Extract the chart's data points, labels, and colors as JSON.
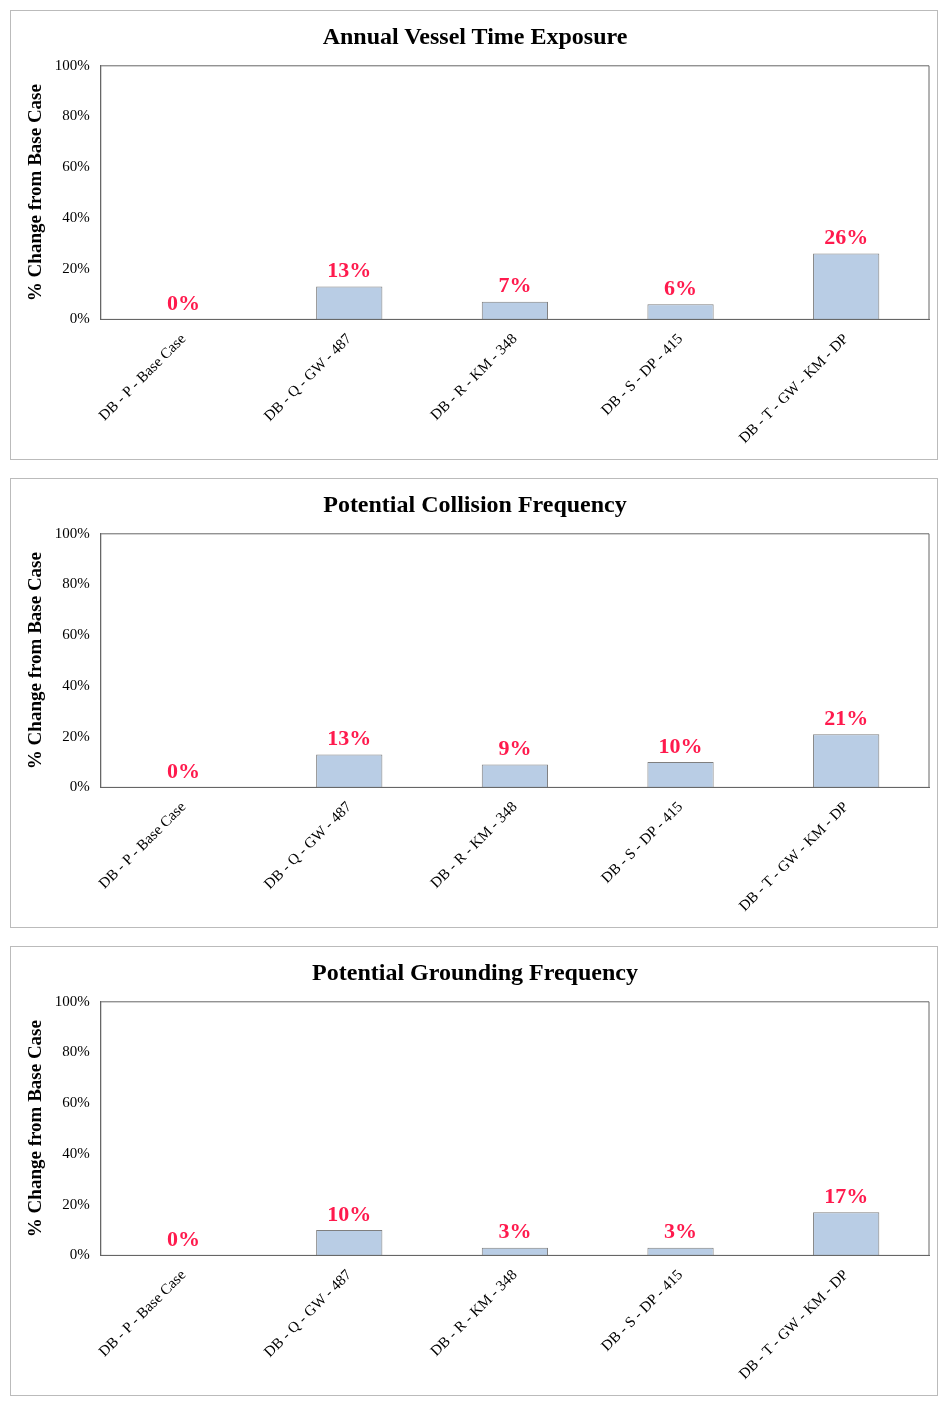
{
  "chart_data": [
    {
      "type": "bar",
      "title": "Annual Vessel Time Exposure",
      "ylabel": "% Change from Base Case",
      "categories": [
        "DB - P - Base Case",
        "DB - Q - GW - 487",
        "DB - R - KM - 348",
        "DB - S - DP - 415",
        "DB - T - GW - KM - DP"
      ],
      "values": [
        0,
        13,
        7,
        6,
        26
      ],
      "value_labels": [
        "0%",
        "13%",
        "7%",
        "6%",
        "26%"
      ],
      "color": "#b9cde5",
      "ylim": [
        0,
        100
      ],
      "yticks": [
        {
          "value": 0,
          "label": "0%"
        },
        {
          "value": 20,
          "label": "20%"
        },
        {
          "value": 40,
          "label": "40%"
        },
        {
          "value": 60,
          "label": "60%"
        },
        {
          "value": 80,
          "label": "80%"
        },
        {
          "value": 100,
          "label": "100%"
        }
      ],
      "grid": false,
      "legend": false
    },
    {
      "type": "bar",
      "title": "Potential Collision Frequency",
      "ylabel": "% Change from Base Case",
      "categories": [
        "DB - P - Base Case",
        "DB - Q - GW - 487",
        "DB - R - KM - 348",
        "DB - S - DP - 415",
        "DB - T - GW - KM - DP"
      ],
      "values": [
        0,
        13,
        9,
        10,
        21
      ],
      "value_labels": [
        "0%",
        "13%",
        "9%",
        "10%",
        "21%"
      ],
      "color": "#b9cde5",
      "ylim": [
        0,
        100
      ],
      "yticks": [
        {
          "value": 0,
          "label": "0%"
        },
        {
          "value": 20,
          "label": "20%"
        },
        {
          "value": 40,
          "label": "40%"
        },
        {
          "value": 60,
          "label": "60%"
        },
        {
          "value": 80,
          "label": "80%"
        },
        {
          "value": 100,
          "label": "100%"
        }
      ],
      "grid": false,
      "legend": false
    },
    {
      "type": "bar",
      "title": "Potential Grounding Frequency",
      "ylabel": "% Change from Base Case",
      "categories": [
        "DB - P - Base Case",
        "DB - Q - GW - 487",
        "DB - R - KM - 348",
        "DB - S - DP - 415",
        "DB - T - GW - KM - DP"
      ],
      "values": [
        0,
        10,
        3,
        3,
        17
      ],
      "value_labels": [
        "0%",
        "10%",
        "3%",
        "3%",
        "17%"
      ],
      "color": "#b9cde5",
      "ylim": [
        0,
        100
      ],
      "yticks": [
        {
          "value": 0,
          "label": "0%"
        },
        {
          "value": 20,
          "label": "20%"
        },
        {
          "value": 40,
          "label": "40%"
        },
        {
          "value": 60,
          "label": "60%"
        },
        {
          "value": 80,
          "label": "80%"
        },
        {
          "value": 100,
          "label": "100%"
        }
      ],
      "grid": false,
      "legend": false
    }
  ]
}
